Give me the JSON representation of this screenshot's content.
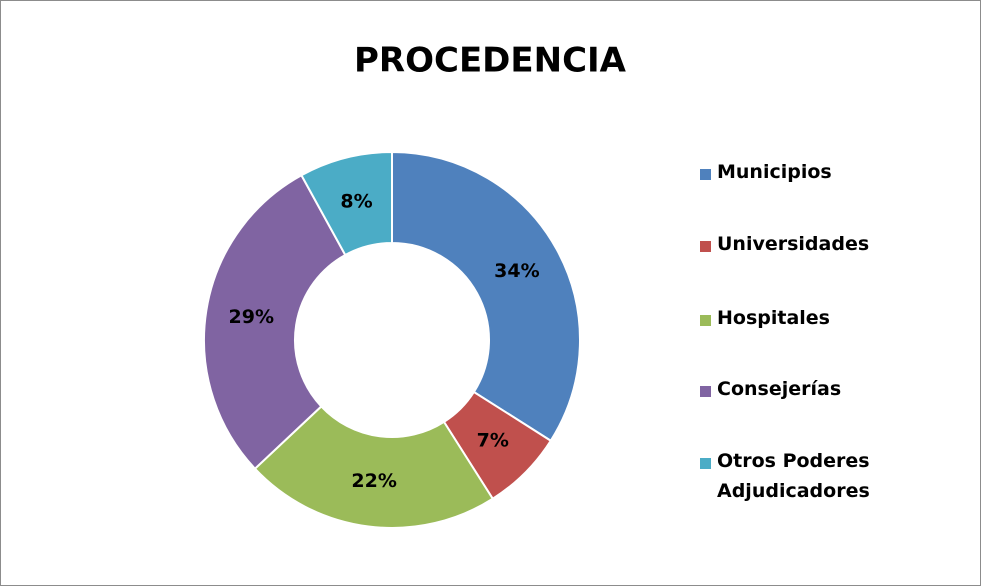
{
  "chart_data": {
    "type": "pie",
    "title": "PROCEDENCIA",
    "categories": [
      "Municipios",
      "Universidades",
      "Hospitales",
      "Consejerías",
      "Otros Poderes Adjudicadores"
    ],
    "values": [
      34,
      7,
      22,
      29,
      8
    ],
    "value_labels": [
      "34%",
      "7%",
      "22%",
      "29%",
      "8%"
    ],
    "colors": [
      "#4f81bd",
      "#c0504d",
      "#9bbb59",
      "#8064a2",
      "#4bacc6"
    ],
    "donut": true,
    "legend": "right"
  }
}
